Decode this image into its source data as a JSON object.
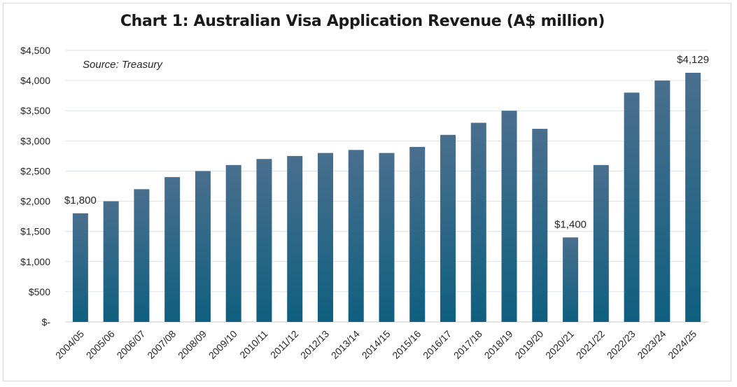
{
  "chart_data": {
    "type": "bar",
    "title": "Chart 1: Australian Visa Application Revenue (A$ million)",
    "source_note": "Source: Treasury",
    "categories": [
      "2004/05",
      "2005/06",
      "2006/07",
      "2007/08",
      "2008/09",
      "2009/10",
      "2010/11",
      "2011/12",
      "2012/13",
      "2013/14",
      "2014/15",
      "2015/16",
      "2016/17",
      "2017/18",
      "2018/19",
      "2019/20",
      "2020/21",
      "2021/22",
      "2022/23",
      "2023/24",
      "2024/25"
    ],
    "values": [
      1800,
      2000,
      2200,
      2400,
      2500,
      2600,
      2700,
      2750,
      2800,
      2850,
      2800,
      2900,
      3100,
      3300,
      3500,
      3200,
      1400,
      2600,
      3800,
      4000,
      4129
    ],
    "ylim": [
      0,
      4500
    ],
    "yticks": [
      0,
      500,
      1000,
      1500,
      2000,
      2500,
      3000,
      3500,
      4000,
      4500
    ],
    "ytick_labels": [
      "$-",
      "$500",
      "$1,000",
      "$1,500",
      "$2,000",
      "$2,500",
      "$3,000",
      "$3,500",
      "$4,000",
      "$4,500"
    ],
    "data_labels": [
      {
        "category": "2004/05",
        "text": "$1,800"
      },
      {
        "category": "2020/21",
        "text": "$1,400"
      },
      {
        "category": "2024/25",
        "text": "$4,129"
      }
    ],
    "xlabel": "",
    "ylabel": "",
    "grid": true,
    "legend": "none",
    "bar_color_top": "#4a6f8e",
    "bar_color_bottom": "#0f5f80",
    "grid_color": "#dde3ea"
  }
}
